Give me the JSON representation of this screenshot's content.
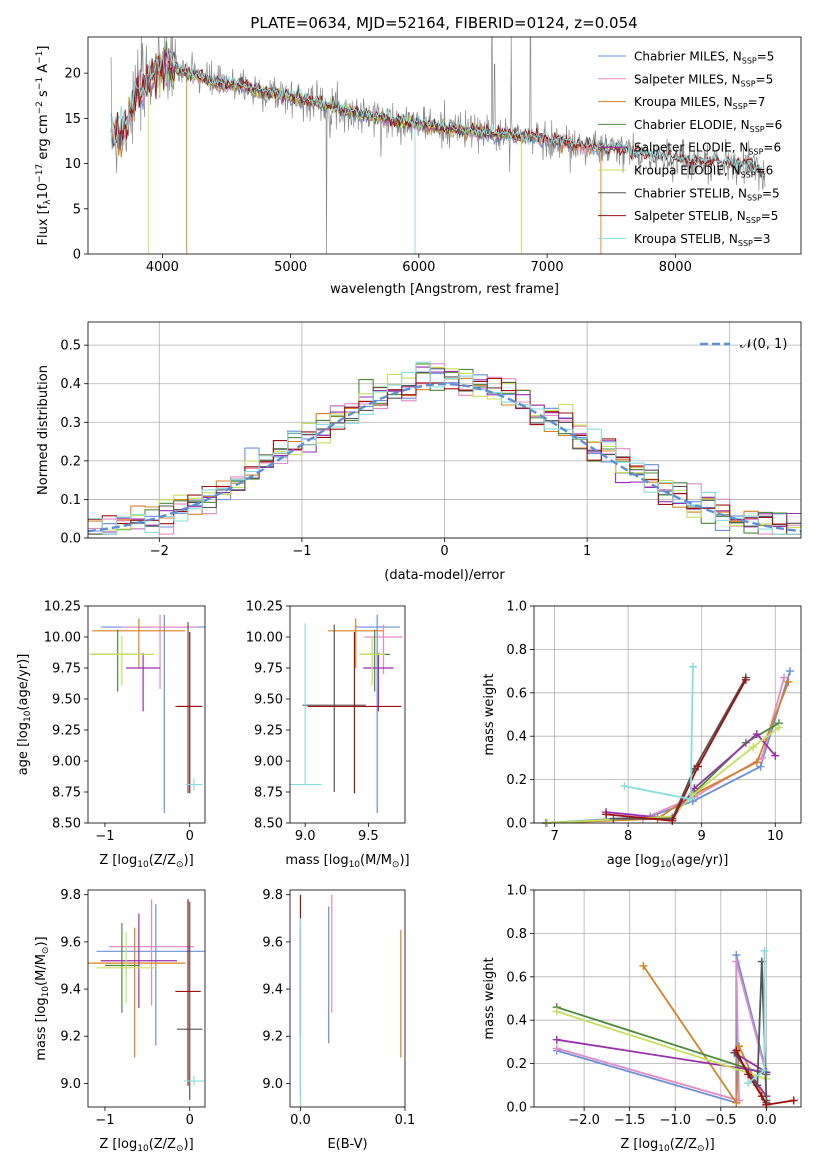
{
  "figure": {
    "title": "PLATE=0634, MJD=52164, FIBERID=0124, z=0.054"
  },
  "colors": {
    "Chabrier MILES": "#6a8fdc",
    "Salpeter MILES": "#e48ac6",
    "Kroupa MILES": "#d98020",
    "Chabrier ELODIE": "#4c8a3c",
    "Salpeter ELODIE": "#9a2fae",
    "Kroupa ELODIE": "#c6e05a",
    "Chabrier STELIB": "#555555",
    "Salpeter STELIB": "#a01010",
    "Kroupa STELIB": "#86dede",
    "gaussian": "#5b8fd8"
  },
  "chart_data": [
    {
      "id": "spectrum",
      "type": "line",
      "title": "PLATE=0634, MJD=52164, FIBERID=0124, z=0.054",
      "xlabel": "wavelength [Angstrom, rest frame]",
      "ylabel": "Flux [f_λ 10^-17 erg cm^-2 s^-1 A^-1]",
      "xlim": [
        3420,
        8980
      ],
      "ylim": [
        0,
        24
      ],
      "xticks": [
        4000,
        5000,
        6000,
        7000,
        8000
      ],
      "yticks": [
        0,
        5,
        10,
        15,
        20
      ],
      "grid": false,
      "legend_position": "top-right",
      "legend": [
        {
          "text": "Chabrier MILES, N",
          "sub": "SSP",
          "tail": "=5",
          "key": "Chabrier MILES"
        },
        {
          "text": "Salpeter MILES, N",
          "sub": "SSP",
          "tail": "=5",
          "key": "Salpeter MILES"
        },
        {
          "text": "Kroupa MILES, N",
          "sub": "SSP",
          "tail": "=7",
          "key": "Kroupa MILES"
        },
        {
          "text": "Chabrier ELODIE, N",
          "sub": "SSP",
          "tail": "=6",
          "key": "Chabrier ELODIE"
        },
        {
          "text": "Salpeter ELODIE, N",
          "sub": "SSP",
          "tail": "=6",
          "key": "Salpeter ELODIE"
        },
        {
          "text": "Kroupa ELODIE, N",
          "sub": "SSP",
          "tail": "=6",
          "key": "Kroupa ELODIE"
        },
        {
          "text": "Chabrier STELIB, N",
          "sub": "SSP",
          "tail": "=5",
          "key": "Chabrier STELIB"
        },
        {
          "text": "Salpeter STELIB, N",
          "sub": "SSP",
          "tail": "=5",
          "key": "Salpeter STELIB"
        },
        {
          "text": "Kroupa STELIB, N",
          "sub": "SSP",
          "tail": "=3",
          "key": "Kroupa STELIB"
        }
      ],
      "observed_continuum": [
        [
          3600,
          13.2
        ],
        [
          3700,
          13.8
        ],
        [
          3800,
          17.5
        ],
        [
          3900,
          19.5
        ],
        [
          4000,
          20.8
        ],
        [
          4100,
          20.5
        ],
        [
          4200,
          20.0
        ],
        [
          4300,
          19.6
        ],
        [
          4400,
          19.0
        ],
        [
          4500,
          18.6
        ],
        [
          4600,
          18.8
        ],
        [
          4700,
          18.2
        ],
        [
          4800,
          17.9
        ],
        [
          4900,
          17.7
        ],
        [
          5000,
          17.4
        ],
        [
          5200,
          16.8
        ],
        [
          5400,
          15.9
        ],
        [
          5600,
          15.3
        ],
        [
          5800,
          14.8
        ],
        [
          6000,
          14.4
        ],
        [
          6200,
          13.9
        ],
        [
          6400,
          13.6
        ],
        [
          6600,
          13.3
        ],
        [
          6800,
          13.0
        ],
        [
          7000,
          12.6
        ],
        [
          7200,
          12.1
        ],
        [
          7400,
          11.8
        ],
        [
          7600,
          11.4
        ],
        [
          7800,
          10.9
        ],
        [
          8000,
          10.5
        ],
        [
          8200,
          10.2
        ],
        [
          8400,
          10.0
        ],
        [
          8600,
          9.7
        ],
        [
          8700,
          8.8
        ]
      ],
      "observed_spikes": [
        [
          3640,
          10.5
        ],
        [
          3890,
          20.8
        ],
        [
          3970,
          24.0
        ],
        [
          4060,
          22.5
        ],
        [
          5280,
          0.0
        ],
        [
          6570,
          24.0
        ],
        [
          6590,
          21.0
        ],
        [
          6720,
          24.0
        ],
        [
          6870,
          24.0
        ]
      ]
    },
    {
      "id": "residuals",
      "type": "histogram",
      "xlabel": "(data-model)/error",
      "ylabel": "Normed distribution",
      "xlim": [
        -2.5,
        2.5
      ],
      "ylim": [
        0,
        0.56
      ],
      "xticks": [
        -2,
        -1,
        0,
        1,
        2
      ],
      "yticks": [
        0.0,
        0.1,
        0.2,
        0.3,
        0.4,
        0.5
      ],
      "grid": true,
      "legend_position": "top-right",
      "legend": [
        {
          "text": "𝒩(0, 1)",
          "key": "gaussian"
        }
      ],
      "bin_width": 0.1
    },
    {
      "id": "age_vs_Z",
      "type": "errorbar",
      "xlabel": "Z [log10(Z/Z⊙)]",
      "ylabel": "age [log10(age/yr)]",
      "xlim": [
        -1.2,
        0.18
      ],
      "ylim": [
        8.5,
        10.25
      ],
      "xticks": [
        -1,
        0
      ],
      "yticks": [
        8.5,
        8.75,
        9.0,
        9.25,
        9.5,
        9.75,
        10.0,
        10.25
      ],
      "grid": false,
      "points": [
        {
          "key": "Chabrier MILES",
          "x": -0.3,
          "xerr": 0.75,
          "y": 10.08,
          "yerr": [
            1.5,
            0.1
          ]
        },
        {
          "key": "Salpeter MILES",
          "x": -0.35,
          "xerr": 0.45,
          "y": 10.08,
          "yerr": [
            0.5,
            0.1
          ]
        },
        {
          "key": "Kroupa MILES",
          "x": -0.6,
          "xerr": 0.55,
          "y": 10.05,
          "yerr": [
            0.3,
            0.1
          ]
        },
        {
          "key": "Chabrier ELODIE",
          "x": -0.85,
          "xerr": 0.3,
          "y": 9.86,
          "yerr": [
            0.3,
            0.2
          ]
        },
        {
          "key": "Salpeter ELODIE",
          "x": -0.55,
          "xerr": 0.2,
          "y": 9.75,
          "yerr": [
            0.35,
            0.12
          ]
        },
        {
          "key": "Kroupa ELODIE",
          "x": -0.8,
          "xerr": 0.38,
          "y": 9.86,
          "yerr": [
            0.25,
            0.15
          ]
        },
        {
          "key": "Chabrier STELIB",
          "x": -0.02,
          "xerr": 0.15,
          "y": 9.44,
          "yerr": [
            0.7,
            0.68
          ]
        },
        {
          "key": "Salpeter STELIB",
          "x": 0.0,
          "xerr": 0.15,
          "y": 9.44,
          "yerr": [
            0.7,
            0.6
          ]
        },
        {
          "key": "Kroupa STELIB",
          "x": 0.05,
          "xerr": 0.1,
          "y": 8.81,
          "yerr": [
            0.05,
            0.05
          ]
        }
      ]
    },
    {
      "id": "age_vs_mass",
      "type": "errorbar",
      "xlabel": "mass [log10(M/M⊙)]",
      "ylabel": "",
      "xlim": [
        8.88,
        9.79
      ],
      "ylim": [
        8.5,
        10.25
      ],
      "xticks": [
        9.0,
        9.5
      ],
      "yticks": [
        8.5,
        8.75,
        9.0,
        9.25,
        9.5,
        9.75,
        10.0,
        10.25
      ],
      "grid": false,
      "points": [
        {
          "key": "Chabrier MILES",
          "x": 9.57,
          "xerr": 0.18,
          "y": 10.08,
          "yerr": [
            1.5,
            0.1
          ]
        },
        {
          "key": "Salpeter MILES",
          "x": 9.62,
          "xerr": 0.15,
          "y": 10.0,
          "yerr": [
            0.3,
            0.1
          ]
        },
        {
          "key": "Kroupa MILES",
          "x": 9.4,
          "xerr": 0.22,
          "y": 10.05,
          "yerr": [
            0.3,
            0.1
          ]
        },
        {
          "key": "Chabrier ELODIE",
          "x": 9.55,
          "xerr": 0.12,
          "y": 9.86,
          "yerr": [
            0.3,
            0.2
          ]
        },
        {
          "key": "Salpeter ELODIE",
          "x": 9.58,
          "xerr": 0.12,
          "y": 9.75,
          "yerr": [
            0.35,
            0.12
          ]
        },
        {
          "key": "Kroupa ELODIE",
          "x": 9.53,
          "xerr": 0.1,
          "y": 9.86,
          "yerr": [
            0.25,
            0.15
          ]
        },
        {
          "key": "Chabrier STELIB",
          "x": 9.23,
          "xerr": 0.25,
          "y": 9.45,
          "yerr": [
            0.7,
            0.65
          ]
        },
        {
          "key": "Salpeter STELIB",
          "x": 9.39,
          "xerr": 0.37,
          "y": 9.44,
          "yerr": [
            0.7,
            0.6
          ]
        },
        {
          "key": "Kroupa STELIB",
          "x": 9.0,
          "xerr": 0.13,
          "y": 8.81,
          "yerr": [
            0.0,
            1.3
          ]
        }
      ]
    },
    {
      "id": "weight_vs_age",
      "type": "line",
      "xlabel": "age [log10(age/yr)]",
      "ylabel": "mass weight",
      "xlim": [
        6.72,
        10.35
      ],
      "ylim": [
        0,
        1.0
      ],
      "xticks": [
        7,
        8,
        9,
        10
      ],
      "yticks": [
        0.0,
        0.2,
        0.4,
        0.6,
        0.8,
        1.0
      ],
      "grid": true,
      "series": [
        {
          "key": "Chabrier MILES",
          "x": [
            6.88,
            8.3,
            8.88,
            9.8,
            10.2
          ],
          "y": [
            0.0,
            0.03,
            0.1,
            0.26,
            0.7
          ]
        },
        {
          "key": "Salpeter MILES",
          "x": [
            6.9,
            8.2,
            8.9,
            9.82,
            10.12
          ],
          "y": [
            0.0,
            0.02,
            0.12,
            0.3,
            0.67
          ]
        },
        {
          "key": "Kroupa MILES",
          "x": [
            6.9,
            8.4,
            8.88,
            9.75,
            10.18
          ],
          "y": [
            0.0,
            0.02,
            0.13,
            0.28,
            0.65
          ]
        },
        {
          "key": "Chabrier ELODIE",
          "x": [
            6.9,
            8.6,
            8.9,
            9.6,
            10.05
          ],
          "y": [
            0.0,
            0.03,
            0.14,
            0.37,
            0.46
          ]
        },
        {
          "key": "Salpeter ELODIE",
          "x": [
            7.7,
            8.6,
            8.9,
            9.75,
            10.0
          ],
          "y": [
            0.05,
            0.02,
            0.16,
            0.41,
            0.31
          ]
        },
        {
          "key": "Kroupa ELODIE",
          "x": [
            6.9,
            8.6,
            8.88,
            9.7,
            10.05
          ],
          "y": [
            0.0,
            0.03,
            0.13,
            0.35,
            0.44
          ]
        },
        {
          "key": "Chabrier STELIB",
          "x": [
            7.8,
            8.6,
            8.9,
            9.6
          ],
          "y": [
            0.02,
            0.02,
            0.25,
            0.67
          ]
        },
        {
          "key": "Salpeter STELIB",
          "x": [
            7.7,
            8.6,
            8.95,
            9.6
          ],
          "y": [
            0.04,
            0.01,
            0.26,
            0.66
          ]
        },
        {
          "key": "Kroupa STELIB",
          "x": [
            7.95,
            8.85,
            8.88
          ],
          "y": [
            0.17,
            0.11,
            0.72
          ]
        }
      ]
    },
    {
      "id": "mass_vs_Z",
      "type": "errorbar",
      "xlabel": "Z [log10(Z/Z⊙)]",
      "ylabel": "mass [log10(M/M⊙)]",
      "xlim": [
        -1.2,
        0.18
      ],
      "ylim": [
        8.9,
        9.82
      ],
      "xticks": [
        -1,
        0
      ],
      "yticks": [
        9.0,
        9.2,
        9.4,
        9.6,
        9.8
      ],
      "grid": false,
      "points": [
        {
          "key": "Chabrier MILES",
          "x": -0.4,
          "xerr": 0.7,
          "y": 9.56,
          "yerr": [
            0.4,
            0.2
          ]
        },
        {
          "key": "Salpeter MILES",
          "x": -0.45,
          "xerr": 0.5,
          "y": 9.58,
          "yerr": [
            0.25,
            0.2
          ]
        },
        {
          "key": "Kroupa MILES",
          "x": -0.65,
          "xerr": 0.6,
          "y": 9.51,
          "yerr": [
            0.4,
            0.15
          ]
        },
        {
          "key": "Chabrier ELODIE",
          "x": -0.8,
          "xerr": 0.2,
          "y": 9.5,
          "yerr": [
            0.2,
            0.18
          ]
        },
        {
          "key": "Salpeter ELODIE",
          "x": -0.6,
          "xerr": 0.45,
          "y": 9.52,
          "yerr": [
            0.2,
            0.2
          ]
        },
        {
          "key": "Kroupa ELODIE",
          "x": -0.75,
          "xerr": 0.35,
          "y": 9.49,
          "yerr": [
            0.15,
            0.15
          ]
        },
        {
          "key": "Chabrier STELIB",
          "x": 0.0,
          "xerr": 0.15,
          "y": 9.23,
          "yerr": [
            0.3,
            0.54
          ]
        },
        {
          "key": "Salpeter STELIB",
          "x": -0.02,
          "xerr": 0.15,
          "y": 9.39,
          "yerr": [
            0.4,
            0.39
          ]
        },
        {
          "key": "Kroupa STELIB",
          "x": 0.05,
          "xerr": 0.12,
          "y": 9.01,
          "yerr": [
            0.02,
            0.02
          ]
        }
      ]
    },
    {
      "id": "mass_vs_EBV",
      "type": "errorbar",
      "xlabel": "E(B-V)",
      "ylabel": "",
      "xlim": [
        -0.01,
        0.1
      ],
      "ylim": [
        8.9,
        9.82
      ],
      "xticks": [
        0.0,
        0.1
      ],
      "yticks": [
        9.0,
        9.2,
        9.4,
        9.6,
        9.8
      ],
      "grid": false,
      "points": [
        {
          "key": "Chabrier MILES",
          "x": 0.027,
          "y": 9.46,
          "yerr": [
            0.29,
            0.29
          ]
        },
        {
          "key": "Salpeter MILES",
          "x": 0.03,
          "y": 9.55,
          "yerr": [
            0.25,
            0.25
          ]
        },
        {
          "key": "Kroupa MILES",
          "x": 0.096,
          "y": 9.38,
          "yerr": [
            0.27,
            0.27
          ]
        },
        {
          "key": "Chabrier STELIB",
          "x": 0.0,
          "y": 9.3,
          "yerr": [
            0.35,
            0.35
          ]
        },
        {
          "key": "Salpeter STELIB",
          "x": 0.0,
          "y": 9.5,
          "yerr": [
            0.3,
            0.3
          ]
        },
        {
          "key": "Kroupa STELIB",
          "x": 0.0,
          "y": 9.3,
          "yerr": [
            0.4,
            0.4
          ]
        }
      ]
    },
    {
      "id": "weight_vs_Z",
      "type": "line",
      "xlabel": "Z [log10(Z/Z⊙)]",
      "ylabel": "mass weight",
      "xlim": [
        -2.55,
        0.38
      ],
      "ylim": [
        0,
        1.0
      ],
      "xticks": [
        -2.0,
        -1.5,
        -1.0,
        -0.5,
        0.0
      ],
      "yticks": [
        0.0,
        0.2,
        0.4,
        0.6,
        0.8,
        1.0
      ],
      "grid": true,
      "series": [
        {
          "key": "Chabrier MILES",
          "x": [
            -2.3,
            -0.33,
            -0.33,
            0.0
          ],
          "y": [
            0.26,
            0.02,
            0.7,
            0.16
          ]
        },
        {
          "key": "Salpeter MILES",
          "x": [
            -2.3,
            -0.3,
            -0.33,
            0.0
          ],
          "y": [
            0.27,
            0.03,
            0.67,
            0.15
          ]
        },
        {
          "key": "Kroupa MILES",
          "x": [
            -1.35,
            -0.33,
            -0.3,
            0.0
          ],
          "y": [
            0.65,
            0.02,
            0.28,
            0.01
          ]
        },
        {
          "key": "Chabrier ELODIE",
          "x": [
            -2.3,
            0.0
          ],
          "y": [
            0.46,
            0.15
          ]
        },
        {
          "key": "Salpeter ELODIE",
          "x": [
            -2.3,
            0.0,
            -0.35,
            0.0
          ],
          "y": [
            0.31,
            0.16,
            0.25,
            0.05
          ]
        },
        {
          "key": "Kroupa ELODIE",
          "x": [
            -2.3,
            0.0
          ],
          "y": [
            0.44,
            0.13
          ]
        },
        {
          "key": "Chabrier STELIB",
          "x": [
            -0.35,
            -0.1,
            -0.05,
            0.0,
            0.0
          ],
          "y": [
            0.25,
            0.1,
            0.67,
            0.03,
            0.02
          ]
        },
        {
          "key": "Salpeter STELIB",
          "x": [
            -0.33,
            -0.2,
            -0.05,
            0.0,
            0.3
          ],
          "y": [
            0.26,
            0.15,
            0.05,
            0.01,
            0.03
          ]
        },
        {
          "key": "Kroupa STELIB",
          "x": [
            -0.2,
            -0.02,
            -0.02
          ],
          "y": [
            0.11,
            0.17,
            0.72
          ]
        }
      ]
    }
  ]
}
